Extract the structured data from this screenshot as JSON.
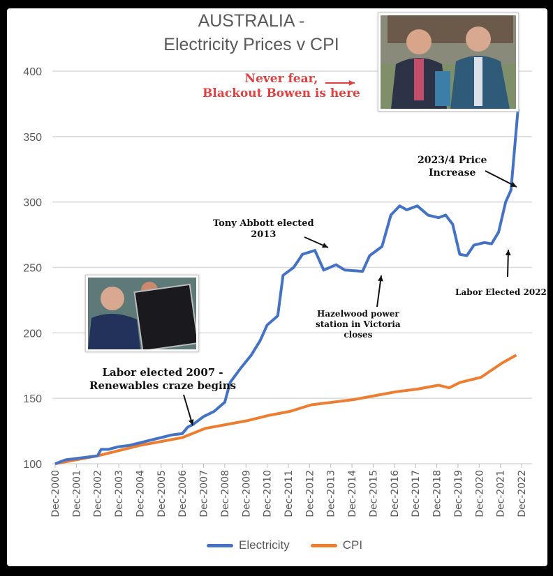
{
  "chart_data": {
    "type": "line",
    "title": "AUSTRALIA - Electricity Prices v CPI",
    "title_lines": [
      "AUSTRALIA -",
      "Electricity Prices v CPI"
    ],
    "xlabel": "",
    "ylabel": "",
    "ylim": [
      100,
      400
    ],
    "yticks": [
      100,
      150,
      200,
      250,
      300,
      350,
      400
    ],
    "xticks": [
      "Dec-2000",
      "Dec-2001",
      "Dec-2002",
      "Dec-2003",
      "Dec-2004",
      "Dec-2005",
      "Dec-2006",
      "Dec-2007",
      "Dec-2008",
      "Dec-2009",
      "Dec-2010",
      "Dec-2011",
      "Dec-2012",
      "Dec-2013",
      "Dec-2014",
      "Dec-2015",
      "Dec-2016",
      "Dec-2017",
      "Dec-2018",
      "Dec-2019",
      "Dec-2020",
      "Dec-2021",
      "Dec-2022"
    ],
    "grid": true,
    "legend": "bottom",
    "series": [
      {
        "name": "Electricity",
        "color": "#4472C4",
        "x": [
          "2000-12",
          "2001-06",
          "2001-12",
          "2002-06",
          "2002-12",
          "2003-02",
          "2003-06",
          "2003-12",
          "2004-06",
          "2004-12",
          "2005-06",
          "2005-12",
          "2006-06",
          "2006-12",
          "2007-03",
          "2007-06",
          "2007-12",
          "2008-06",
          "2008-12",
          "2009-03",
          "2009-09",
          "2010-03",
          "2010-08",
          "2010-12",
          "2011-06",
          "2011-09",
          "2012-03",
          "2012-08",
          "2013-03",
          "2013-08",
          "2014-03",
          "2014-08",
          "2015-06",
          "2015-10",
          "2016-05",
          "2016-10",
          "2017-03",
          "2017-07",
          "2018-01",
          "2018-07",
          "2019-01",
          "2019-05",
          "2019-09",
          "2020-01",
          "2020-05",
          "2020-09",
          "2021-03",
          "2021-07",
          "2021-11",
          "2022-03",
          "2022-06",
          "2022-10"
        ],
        "y": [
          100,
          103,
          104,
          105,
          106,
          111,
          111,
          113,
          114,
          116,
          118,
          120,
          122,
          123,
          128,
          130,
          136,
          140,
          147,
          162,
          173,
          183,
          194,
          206,
          213,
          244,
          250,
          260,
          263,
          248,
          252,
          248,
          247,
          259,
          266,
          290,
          297,
          294,
          297,
          290,
          288,
          290,
          283,
          260,
          259,
          267,
          269,
          268,
          277,
          300,
          309,
          371
        ]
      },
      {
        "name": "CPI",
        "color": "#ED7D31",
        "x": [
          "2000-12",
          "2002-12",
          "2004-12",
          "2006-12",
          "2008-01",
          "2010-01",
          "2011-01",
          "2012-01",
          "2013-01",
          "2014-01",
          "2015-01",
          "2016-01",
          "2017-01",
          "2018-01",
          "2019-01",
          "2019-07",
          "2020-01",
          "2021-01",
          "2022-01",
          "2022-09"
        ],
        "y": [
          100,
          106,
          114,
          120,
          127,
          133,
          137,
          140,
          145,
          147,
          149,
          152,
          155,
          157,
          160,
          158,
          162,
          166,
          177,
          183
        ]
      }
    ]
  },
  "annotations": {
    "bowen": [
      "Never fear,",
      "Blackout Bowen is here"
    ],
    "labor2007": [
      "Labor elected 2007 -",
      "Renewables craze begins"
    ],
    "abbott": [
      "Tony Abbott elected",
      "2013"
    ],
    "hazelwood": [
      "Hazelwood power",
      "station in Victoria",
      "closes"
    ],
    "increase": [
      "2023/4 Price",
      "Increase"
    ],
    "labor2022": "Labor Elected 2022"
  },
  "colors": {
    "annotation_red": "#E04040",
    "grid": "#D9D9D9",
    "axis_text": "#595959"
  }
}
